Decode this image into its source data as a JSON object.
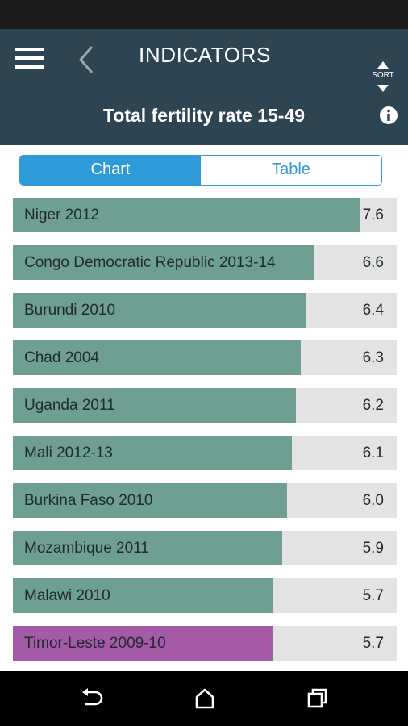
{
  "header": {
    "title": "INDICATORS",
    "indicator": "Total fertility rate 15-49",
    "sort_label": "SORT"
  },
  "tabs": [
    {
      "label": "Chart",
      "active": true
    },
    {
      "label": "Table",
      "active": false
    }
  ],
  "colors": {
    "header_bg": "#2d4452",
    "accent": "#2e9ad8",
    "bar_default": "#6f9e92",
    "bar_highlight": "#a45aa6",
    "bar_track": "#e3e3e3"
  },
  "chart_data": {
    "type": "bar",
    "orientation": "horizontal",
    "title": "Total fertility rate 15-49",
    "xlim": [
      0,
      8.4
    ],
    "categories": [
      "Niger 2012",
      "Congo Democratic Republic 2013-14",
      "Burundi 2010",
      "Chad 2004",
      "Uganda 2011",
      "Mali 2012-13",
      "Burkina Faso 2010",
      "Mozambique 2011",
      "Malawi 2010",
      "Timor-Leste 2009-10"
    ],
    "values": [
      7.6,
      6.6,
      6.4,
      6.3,
      6.2,
      6.1,
      6.0,
      5.9,
      5.7,
      5.7
    ],
    "value_labels": [
      "7.6",
      "6.6",
      "6.4",
      "6.3",
      "6.2",
      "6.1",
      "6.0",
      "5.9",
      "5.7",
      "5.7"
    ],
    "highlighted": [
      "Timor-Leste 2009-10"
    ]
  },
  "nav": {
    "back_icon": "back-arrow-icon",
    "home_icon": "home-icon",
    "recents_icon": "recent-apps-icon"
  }
}
